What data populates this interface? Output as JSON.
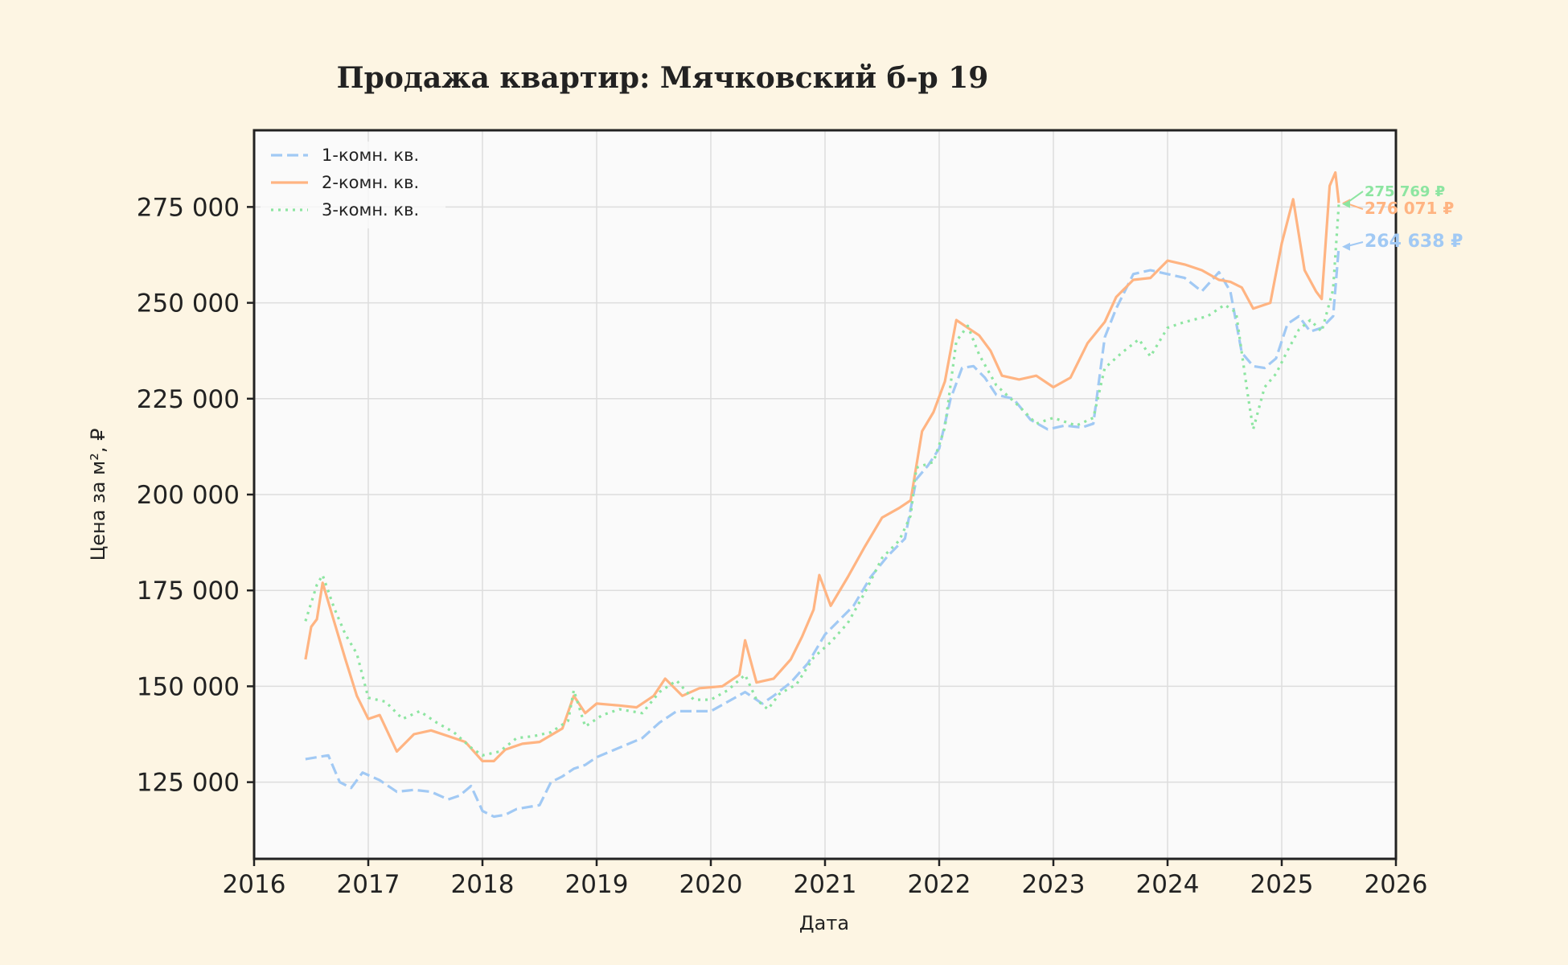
{
  "chart_data": {
    "type": "line",
    "title": "Продажа квартир: Мячковский б-р 19",
    "xlabel": "Дата",
    "ylabel": "Цена за м², ₽",
    "xlim": [
      2016,
      2026
    ],
    "ylim": [
      105000,
      295000
    ],
    "x_ticks": [
      "2016",
      "2017",
      "2018",
      "2019",
      "2020",
      "2021",
      "2022",
      "2023",
      "2024",
      "2025",
      "2026"
    ],
    "y_ticks": [
      "125 000",
      "150 000",
      "175 000",
      "200 000",
      "225 000",
      "250 000",
      "275 000"
    ],
    "grid": true,
    "legend_position": "top-left",
    "series": [
      {
        "name": "1-комн. кв.",
        "color": "#a1c9f4",
        "style": "dashed",
        "last_label": "264 638 ₽",
        "points": [
          [
            2016.45,
            131000
          ],
          [
            2016.55,
            131500
          ],
          [
            2016.65,
            132000
          ],
          [
            2016.75,
            125000
          ],
          [
            2016.85,
            123500
          ],
          [
            2016.95,
            127500
          ],
          [
            2017.1,
            125500
          ],
          [
            2017.25,
            122500
          ],
          [
            2017.4,
            123000
          ],
          [
            2017.55,
            122500
          ],
          [
            2017.7,
            120500
          ],
          [
            2017.8,
            121500
          ],
          [
            2017.9,
            124000
          ],
          [
            2018.0,
            117500
          ],
          [
            2018.1,
            116000
          ],
          [
            2018.2,
            116500
          ],
          [
            2018.3,
            118000
          ],
          [
            2018.4,
            118500
          ],
          [
            2018.5,
            119000
          ],
          [
            2018.6,
            125000
          ],
          [
            2018.7,
            126500
          ],
          [
            2018.8,
            128500
          ],
          [
            2018.9,
            129500
          ],
          [
            2019.0,
            131500
          ],
          [
            2019.2,
            134000
          ],
          [
            2019.4,
            136500
          ],
          [
            2019.55,
            140500
          ],
          [
            2019.7,
            143500
          ],
          [
            2019.85,
            143500
          ],
          [
            2020.0,
            143500
          ],
          [
            2020.15,
            146000
          ],
          [
            2020.3,
            148500
          ],
          [
            2020.45,
            145500
          ],
          [
            2020.55,
            147500
          ],
          [
            2020.7,
            151000
          ],
          [
            2020.85,
            156000
          ],
          [
            2021.0,
            163500
          ],
          [
            2021.1,
            166500
          ],
          [
            2021.25,
            171000
          ],
          [
            2021.4,
            178500
          ],
          [
            2021.55,
            184000
          ],
          [
            2021.7,
            188500
          ],
          [
            2021.8,
            204000
          ],
          [
            2021.9,
            207500
          ],
          [
            2022.0,
            212000
          ],
          [
            2022.1,
            225000
          ],
          [
            2022.2,
            233000
          ],
          [
            2022.3,
            233500
          ],
          [
            2022.4,
            230500
          ],
          [
            2022.5,
            226000
          ],
          [
            2022.65,
            225000
          ],
          [
            2022.8,
            219500
          ],
          [
            2022.95,
            217000
          ],
          [
            2023.1,
            218000
          ],
          [
            2023.25,
            217500
          ],
          [
            2023.35,
            218500
          ],
          [
            2023.45,
            241000
          ],
          [
            2023.55,
            248500
          ],
          [
            2023.7,
            257500
          ],
          [
            2023.85,
            258500
          ],
          [
            2024.0,
            257500
          ],
          [
            2024.15,
            256500
          ],
          [
            2024.3,
            253000
          ],
          [
            2024.45,
            258000
          ],
          [
            2024.55,
            253000
          ],
          [
            2024.65,
            237000
          ],
          [
            2024.75,
            233500
          ],
          [
            2024.85,
            233000
          ],
          [
            2024.95,
            235500
          ],
          [
            2025.05,
            244500
          ],
          [
            2025.15,
            246500
          ],
          [
            2025.25,
            242500
          ],
          [
            2025.35,
            243500
          ],
          [
            2025.45,
            246500
          ],
          [
            2025.5,
            264638
          ]
        ]
      },
      {
        "name": "2-комн. кв.",
        "color": "#ffb482",
        "style": "solid",
        "last_label": "276 071 ₽",
        "points": [
          [
            2016.45,
            157000
          ],
          [
            2016.5,
            165500
          ],
          [
            2016.55,
            167500
          ],
          [
            2016.6,
            177000
          ],
          [
            2016.7,
            167000
          ],
          [
            2016.8,
            157000
          ],
          [
            2016.9,
            147500
          ],
          [
            2017.0,
            141500
          ],
          [
            2017.1,
            142500
          ],
          [
            2017.25,
            133000
          ],
          [
            2017.4,
            137500
          ],
          [
            2017.55,
            138500
          ],
          [
            2017.7,
            137000
          ],
          [
            2017.85,
            135500
          ],
          [
            2018.0,
            130500
          ],
          [
            2018.1,
            130500
          ],
          [
            2018.2,
            133500
          ],
          [
            2018.35,
            135000
          ],
          [
            2018.5,
            135500
          ],
          [
            2018.7,
            139000
          ],
          [
            2018.8,
            147500
          ],
          [
            2018.9,
            143000
          ],
          [
            2019.0,
            145500
          ],
          [
            2019.2,
            145000
          ],
          [
            2019.35,
            144500
          ],
          [
            2019.5,
            147500
          ],
          [
            2019.6,
            152000
          ],
          [
            2019.75,
            147500
          ],
          [
            2019.9,
            149500
          ],
          [
            2020.1,
            150000
          ],
          [
            2020.25,
            153000
          ],
          [
            2020.3,
            162000
          ],
          [
            2020.4,
            151000
          ],
          [
            2020.55,
            152000
          ],
          [
            2020.7,
            157000
          ],
          [
            2020.8,
            163000
          ],
          [
            2020.9,
            170000
          ],
          [
            2020.95,
            179000
          ],
          [
            2021.05,
            171000
          ],
          [
            2021.2,
            178500
          ],
          [
            2021.35,
            186500
          ],
          [
            2021.5,
            194000
          ],
          [
            2021.65,
            196500
          ],
          [
            2021.75,
            198500
          ],
          [
            2021.85,
            216500
          ],
          [
            2021.95,
            221500
          ],
          [
            2022.05,
            229500
          ],
          [
            2022.15,
            245500
          ],
          [
            2022.25,
            243500
          ],
          [
            2022.35,
            241500
          ],
          [
            2022.45,
            237500
          ],
          [
            2022.55,
            231000
          ],
          [
            2022.7,
            230000
          ],
          [
            2022.85,
            231000
          ],
          [
            2023.0,
            228000
          ],
          [
            2023.15,
            230500
          ],
          [
            2023.3,
            239500
          ],
          [
            2023.45,
            245000
          ],
          [
            2023.55,
            251500
          ],
          [
            2023.7,
            256000
          ],
          [
            2023.85,
            256500
          ],
          [
            2024.0,
            261000
          ],
          [
            2024.15,
            260000
          ],
          [
            2024.3,
            258500
          ],
          [
            2024.45,
            256000
          ],
          [
            2024.55,
            255500
          ],
          [
            2024.65,
            254000
          ],
          [
            2024.75,
            248500
          ],
          [
            2024.9,
            250000
          ],
          [
            2025.0,
            265500
          ],
          [
            2025.1,
            277000
          ],
          [
            2025.2,
            258500
          ],
          [
            2025.3,
            253000
          ],
          [
            2025.35,
            251000
          ],
          [
            2025.42,
            280500
          ],
          [
            2025.47,
            284000
          ],
          [
            2025.5,
            276071
          ]
        ]
      },
      {
        "name": "3-комн. кв.",
        "color": "#8de5a1",
        "style": "dotted",
        "last_label": "275 769 ₽",
        "points": [
          [
            2016.45,
            167000
          ],
          [
            2016.55,
            176500
          ],
          [
            2016.6,
            179000
          ],
          [
            2016.7,
            170500
          ],
          [
            2016.8,
            163500
          ],
          [
            2016.9,
            158500
          ],
          [
            2017.0,
            147000
          ],
          [
            2017.15,
            146000
          ],
          [
            2017.3,
            141500
          ],
          [
            2017.45,
            143500
          ],
          [
            2017.6,
            140500
          ],
          [
            2017.75,
            138000
          ],
          [
            2017.9,
            134000
          ],
          [
            2018.0,
            132000
          ],
          [
            2018.15,
            133000
          ],
          [
            2018.3,
            136500
          ],
          [
            2018.45,
            137000
          ],
          [
            2018.6,
            138000
          ],
          [
            2018.75,
            141000
          ],
          [
            2018.8,
            149000
          ],
          [
            2018.9,
            139500
          ],
          [
            2019.05,
            142500
          ],
          [
            2019.2,
            144000
          ],
          [
            2019.4,
            143000
          ],
          [
            2019.55,
            148500
          ],
          [
            2019.7,
            151500
          ],
          [
            2019.85,
            146500
          ],
          [
            2020.0,
            146500
          ],
          [
            2020.15,
            149000
          ],
          [
            2020.3,
            153000
          ],
          [
            2020.4,
            146500
          ],
          [
            2020.5,
            144000
          ],
          [
            2020.6,
            148000
          ],
          [
            2020.75,
            150500
          ],
          [
            2020.9,
            157500
          ],
          [
            2021.05,
            161500
          ],
          [
            2021.2,
            166500
          ],
          [
            2021.35,
            174500
          ],
          [
            2021.5,
            183500
          ],
          [
            2021.65,
            188000
          ],
          [
            2021.75,
            194500
          ],
          [
            2021.8,
            207000
          ],
          [
            2021.95,
            208500
          ],
          [
            2022.05,
            217500
          ],
          [
            2022.15,
            240000
          ],
          [
            2022.25,
            244000
          ],
          [
            2022.35,
            236500
          ],
          [
            2022.5,
            228500
          ],
          [
            2022.7,
            223000
          ],
          [
            2022.85,
            218500
          ],
          [
            2023.0,
            220000
          ],
          [
            2023.2,
            218000
          ],
          [
            2023.35,
            220000
          ],
          [
            2023.45,
            233000
          ],
          [
            2023.6,
            237000
          ],
          [
            2023.75,
            240500
          ],
          [
            2023.85,
            236000
          ],
          [
            2024.0,
            243500
          ],
          [
            2024.15,
            245000
          ],
          [
            2024.35,
            246500
          ],
          [
            2024.5,
            249500
          ],
          [
            2024.6,
            247500
          ],
          [
            2024.7,
            226500
          ],
          [
            2024.75,
            217000
          ],
          [
            2024.85,
            228000
          ],
          [
            2024.95,
            231500
          ],
          [
            2025.05,
            237500
          ],
          [
            2025.15,
            243000
          ],
          [
            2025.25,
            245500
          ],
          [
            2025.35,
            242500
          ],
          [
            2025.45,
            253500
          ],
          [
            2025.5,
            275769
          ]
        ]
      }
    ]
  }
}
